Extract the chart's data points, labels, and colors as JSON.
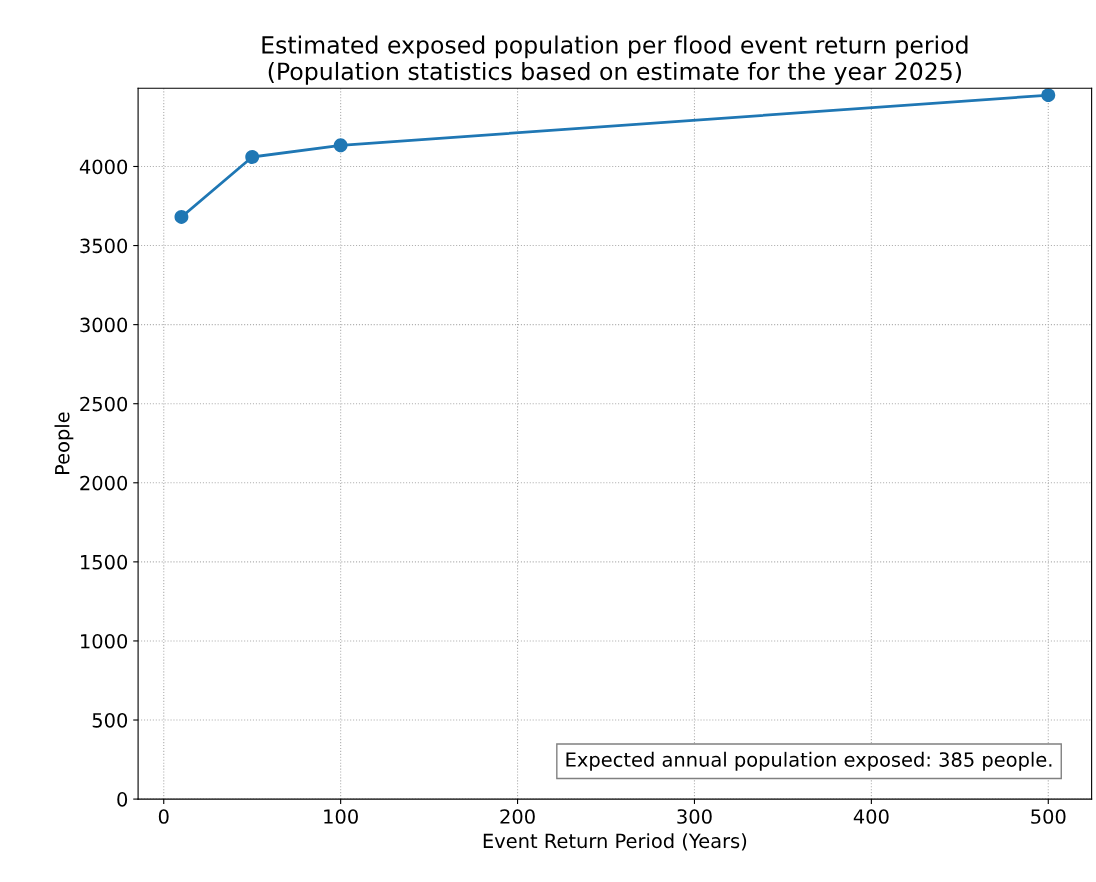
{
  "chart_data": {
    "type": "line",
    "title": "Estimated exposed population per flood event return period\n(Population statistics based on estimate for the year 2025)",
    "xlabel": "Event Return Period (Years)",
    "ylabel": "People",
    "x": [
      10,
      50,
      100,
      500
    ],
    "series": [
      {
        "color": "#1f77b4",
        "values": [
          3681,
          4060,
          4134,
          4451
        ]
      }
    ],
    "marker": "circle",
    "line_style": "solid",
    "xlim": [
      -14.5,
      524.5
    ],
    "xticks": [
      0,
      100,
      200,
      300,
      400,
      500
    ],
    "ylim": [
      0,
      4495
    ],
    "yticks": [
      0,
      500,
      1000,
      1500,
      2000,
      2500,
      3000,
      3500,
      4000
    ],
    "grid": true,
    "annotations": [
      "Expected annual population exposed: 385 people."
    ]
  }
}
